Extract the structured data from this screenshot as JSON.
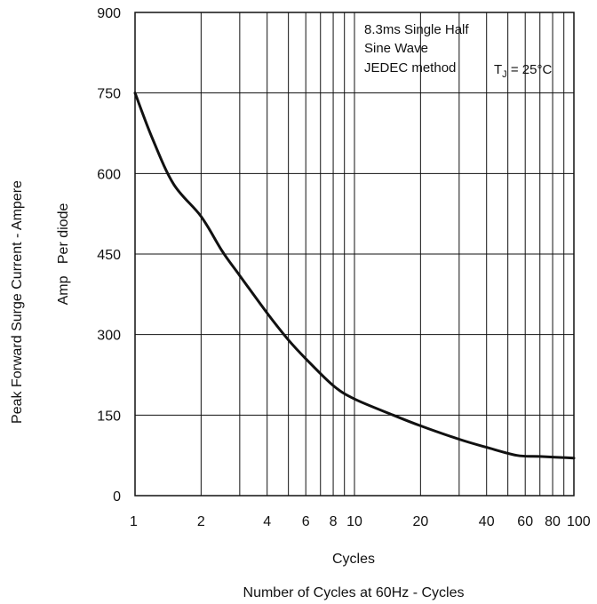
{
  "chart_data": {
    "type": "line",
    "title": "",
    "xlabel": "Cycles",
    "xlabel_secondary": "Number of Cycles at 60Hz - Cycles",
    "ylabel": "Peak Forward Surge Current - Ampere",
    "ylabel_secondary": "Amp   Per diode",
    "x_scale": "log",
    "xlim": [
      1,
      100
    ],
    "ylim": [
      0,
      900
    ],
    "grid": true,
    "x_ticks": [
      1,
      2,
      4,
      6,
      8,
      10,
      20,
      40,
      60,
      80,
      100
    ],
    "x_tick_labels": [
      "1",
      "2",
      "4",
      "6",
      "8",
      "10",
      "20",
      "40",
      "60",
      "80",
      "100"
    ],
    "y_ticks": [
      0,
      150,
      300,
      450,
      600,
      750,
      900
    ],
    "y_tick_labels": [
      "0",
      "150",
      "300",
      "450",
      "600",
      "750",
      "900"
    ],
    "annotation": {
      "lines": [
        "8.3ms Single Half",
        "Sine Wave",
        "JEDEC method"
      ],
      "temp_prefix": "T",
      "temp_subscript": "J",
      "temp_value": " = 25°C"
    },
    "series": [
      {
        "x": [
          1,
          1.2,
          1.5,
          2,
          2.5,
          3,
          4,
          5,
          6,
          8,
          10,
          15,
          20,
          30,
          40,
          55,
          70,
          100
        ],
        "values": [
          750,
          665,
          580,
          520,
          455,
          410,
          340,
          290,
          255,
          205,
          180,
          150,
          130,
          105,
          90,
          75,
          73,
          70
        ]
      }
    ]
  }
}
